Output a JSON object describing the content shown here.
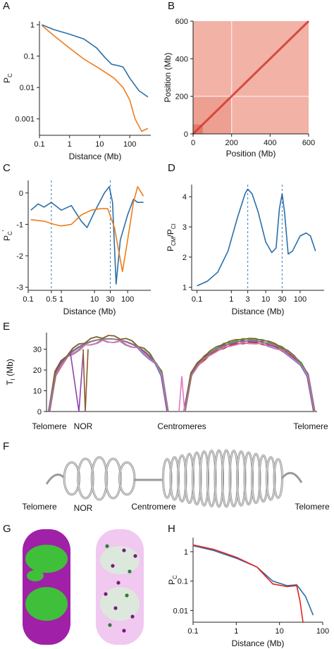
{
  "panel_labels": {
    "A": "A",
    "B": "B",
    "C": "C",
    "D": "D",
    "E": "E",
    "F": "F",
    "G": "G",
    "H": "H"
  },
  "colors": {
    "blue": "#2a6fa8",
    "orange": "#ee7d1a",
    "red": "#e8201d",
    "heat": "#f2b2a6",
    "diag": "#d43a2e"
  },
  "chart_data": [
    {
      "id": "A",
      "type": "line",
      "xlabel": "Distance (Mb)",
      "ylabel": "P",
      "ylabel_sub": "C",
      "xscale": "log",
      "yscale": "log",
      "xlim": [
        0.1,
        500
      ],
      "ylim": [
        0.0003,
        1.3
      ],
      "xticks": [
        {
          "v": 0.1,
          "t": "0.1"
        },
        {
          "v": 1,
          "t": "1"
        },
        {
          "v": 10,
          "t": "10"
        },
        {
          "v": 100,
          "t": "100"
        }
      ],
      "yticks": [
        {
          "v": 1,
          "t": "1"
        },
        {
          "v": 0.1,
          "t": "0.1"
        },
        {
          "v": 0.01,
          "t": "0.01"
        },
        {
          "v": 0.001,
          "t": "0.001"
        }
      ],
      "series": [
        {
          "color": "blue",
          "points": [
            [
              0.12,
              1.0
            ],
            [
              0.3,
              0.7
            ],
            [
              1,
              0.5
            ],
            [
              3,
              0.35
            ],
            [
              8,
              0.18
            ],
            [
              15,
              0.09
            ],
            [
              25,
              0.055
            ],
            [
              40,
              0.05
            ],
            [
              60,
              0.045
            ],
            [
              100,
              0.02
            ],
            [
              200,
              0.008
            ],
            [
              400,
              0.005
            ]
          ]
        },
        {
          "color": "orange",
          "points": [
            [
              0.12,
              0.95
            ],
            [
              0.3,
              0.45
            ],
            [
              1,
              0.18
            ],
            [
              3,
              0.08
            ],
            [
              10,
              0.04
            ],
            [
              30,
              0.02
            ],
            [
              60,
              0.01
            ],
            [
              100,
              0.004
            ],
            [
              150,
              0.001
            ],
            [
              250,
              0.0004
            ],
            [
              400,
              0.0005
            ]
          ]
        }
      ]
    },
    {
      "id": "B",
      "type": "heatmap",
      "xlabel": "Position (Mb)",
      "ylabel": "Position (Mb)",
      "xlim": [
        0,
        600
      ],
      "ylim": [
        0,
        600
      ],
      "xticks": [
        {
          "v": 0,
          "t": "0"
        },
        {
          "v": 200,
          "t": "200"
        },
        {
          "v": 400,
          "t": "400"
        },
        {
          "v": 600,
          "t": "600"
        }
      ],
      "yticks": [
        {
          "v": 0,
          "t": "0"
        },
        {
          "v": 200,
          "t": "200"
        },
        {
          "v": 400,
          "t": "400"
        },
        {
          "v": 600,
          "t": "600"
        }
      ]
    },
    {
      "id": "C",
      "type": "line",
      "xlabel": "Distance (Mb)",
      "ylabel": "P",
      "ylabel_sub": "C",
      "ylabel_sup": "'",
      "xscale": "log",
      "yscale": "linear",
      "xlim": [
        0.1,
        500
      ],
      "ylim": [
        -3.1,
        0.4
      ],
      "xticks": [
        {
          "v": 0.1,
          "t": "0.1"
        },
        {
          "v": 0.5,
          "t": "0.5"
        },
        {
          "v": 1,
          "t": "1"
        },
        {
          "v": 10,
          "t": "10"
        },
        {
          "v": 30,
          "t": "30"
        },
        {
          "v": 100,
          "t": "100"
        }
      ],
      "yticks": [
        {
          "v": 0,
          "t": "0"
        },
        {
          "v": -1,
          "t": "-1"
        },
        {
          "v": -2,
          "t": "-2"
        },
        {
          "v": -3,
          "t": "-3"
        }
      ],
      "vlines": [
        0.5,
        30
      ],
      "series": [
        {
          "color": "blue",
          "points": [
            [
              0.12,
              -0.55
            ],
            [
              0.2,
              -0.35
            ],
            [
              0.3,
              -0.45
            ],
            [
              0.5,
              -0.3
            ],
            [
              1,
              -0.55
            ],
            [
              2,
              -0.4
            ],
            [
              4,
              -0.9
            ],
            [
              6,
              -1.1
            ],
            [
              10,
              -0.6
            ],
            [
              20,
              0.0
            ],
            [
              28,
              0.2
            ],
            [
              35,
              -0.3
            ],
            [
              45,
              -2.9
            ],
            [
              60,
              -1.5
            ],
            [
              100,
              -0.7
            ],
            [
              150,
              -0.2
            ],
            [
              200,
              -0.3
            ],
            [
              300,
              -0.3
            ]
          ]
        },
        {
          "color": "orange",
          "points": [
            [
              0.12,
              -0.85
            ],
            [
              0.3,
              -0.9
            ],
            [
              0.6,
              -1.0
            ],
            [
              1,
              -1.05
            ],
            [
              2,
              -1.0
            ],
            [
              4,
              -0.7
            ],
            [
              8,
              -0.55
            ],
            [
              15,
              -0.5
            ],
            [
              25,
              -0.5
            ],
            [
              40,
              -1.1
            ],
            [
              70,
              -2.5
            ],
            [
              100,
              -1.5
            ],
            [
              150,
              -0.3
            ],
            [
              200,
              0.2
            ],
            [
              300,
              -0.1
            ]
          ]
        }
      ]
    },
    {
      "id": "D",
      "type": "line",
      "xlabel": "Distance (Mb)",
      "ylabel": "P",
      "ylabel_sub1": "CM",
      "ylabel_mid": "/P",
      "ylabel_sub2": "CI",
      "xscale": "log",
      "yscale": "linear",
      "xlim": [
        0.07,
        500
      ],
      "ylim": [
        0.9,
        4.4
      ],
      "xticks": [
        {
          "v": 0.1,
          "t": "0.1"
        },
        {
          "v": 1,
          "t": "1"
        },
        {
          "v": 3,
          "t": "3"
        },
        {
          "v": 10,
          "t": "10"
        },
        {
          "v": 30,
          "t": "30"
        },
        {
          "v": 100,
          "t": "100"
        }
      ],
      "yticks": [
        {
          "v": 1,
          "t": "1"
        },
        {
          "v": 2,
          "t": "2"
        },
        {
          "v": 3,
          "t": "3"
        },
        {
          "v": 4,
          "t": "4"
        }
      ],
      "vlines": [
        3,
        30
      ],
      "series": [
        {
          "color": "blue",
          "points": [
            [
              0.1,
              1.05
            ],
            [
              0.2,
              1.2
            ],
            [
              0.4,
              1.5
            ],
            [
              0.8,
              2.2
            ],
            [
              1.5,
              3.3
            ],
            [
              2.5,
              4.1
            ],
            [
              3,
              4.25
            ],
            [
              4,
              4.1
            ],
            [
              6,
              3.5
            ],
            [
              10,
              2.5
            ],
            [
              15,
              2.15
            ],
            [
              20,
              2.3
            ],
            [
              25,
              3.6
            ],
            [
              30,
              4.1
            ],
            [
              35,
              3.5
            ],
            [
              45,
              2.1
            ],
            [
              60,
              2.2
            ],
            [
              100,
              2.7
            ],
            [
              150,
              2.8
            ],
            [
              200,
              2.7
            ],
            [
              280,
              2.2
            ]
          ]
        }
      ]
    },
    {
      "id": "E",
      "type": "line",
      "ylabel": "T",
      "ylabel_sub": "I",
      "ylabel_unit": " (Mb)",
      "ylim": [
        0,
        38
      ],
      "yticks": [
        {
          "v": 0,
          "t": "0"
        },
        {
          "v": 10,
          "t": "10"
        },
        {
          "v": 20,
          "t": "20"
        },
        {
          "v": 30,
          "t": "30"
        }
      ],
      "bottom_labels": [
        "Telomere",
        "NOR",
        "Centromeres",
        "Telomere"
      ]
    }
  ],
  "figure_F": {
    "labels": [
      "Telomere",
      "NOR",
      "Centromere",
      "Telomere"
    ]
  },
  "figure_G": {
    "colors": {
      "magenta": "#a020a8",
      "green": "#3fbf3a",
      "pale": "#f0c8f0"
    }
  },
  "figure_H": {
    "type": "line",
    "xlabel": "Distance (Mb)",
    "ylabel": "P",
    "ylabel_sub": "C",
    "xscale": "log",
    "yscale": "log",
    "xlim": [
      0.1,
      100
    ],
    "ylim": [
      0.004,
      3
    ],
    "xticks": [
      {
        "v": 0.1,
        "t": "0.1"
      },
      {
        "v": 1,
        "t": "1"
      },
      {
        "v": 10,
        "t": "10"
      },
      {
        "v": 100,
        "t": "100"
      }
    ],
    "yticks": [
      {
        "v": 1,
        "t": "1"
      },
      {
        "v": 0.1,
        "t": "0.1"
      },
      {
        "v": 0.01,
        "t": "0.01"
      }
    ],
    "series": [
      {
        "color": "blue",
        "points": [
          [
            0.1,
            1.6
          ],
          [
            0.3,
            1.1
          ],
          [
            1,
            0.6
          ],
          [
            3,
            0.3
          ],
          [
            7,
            0.1
          ],
          [
            15,
            0.07
          ],
          [
            25,
            0.075
          ],
          [
            40,
            0.03
          ],
          [
            60,
            0.007
          ]
        ]
      },
      {
        "color": "red",
        "points": [
          [
            0.1,
            1.7
          ],
          [
            0.3,
            1.2
          ],
          [
            1,
            0.65
          ],
          [
            3,
            0.3
          ],
          [
            7,
            0.08
          ],
          [
            15,
            0.065
          ],
          [
            25,
            0.07
          ],
          [
            30,
            0.02
          ],
          [
            35,
            0.004
          ]
        ]
      }
    ]
  }
}
